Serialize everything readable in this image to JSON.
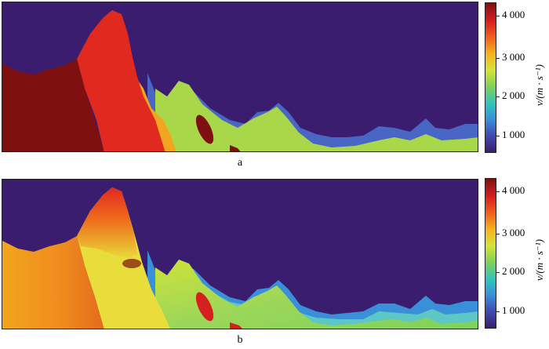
{
  "chart_data": [
    {
      "type": "heatmap",
      "panel_label": "a",
      "colorbar": {
        "label": "v/(m · s⁻¹)",
        "ticks": [
          "1 000",
          "2 000",
          "3 000",
          "4 000"
        ],
        "tick_values": [
          1000,
          2000,
          3000,
          4000
        ],
        "range": [
          600,
          4400
        ],
        "colors": [
          "#3a1d6e",
          "#3f4fb3",
          "#3a8fd9",
          "#2fc1c0",
          "#7fd15a",
          "#d6e23a",
          "#f6b21f",
          "#ef5a1c",
          "#d61f1f",
          "#7e1010"
        ]
      }
    },
    {
      "type": "heatmap",
      "panel_label": "b",
      "colorbar": {
        "label": "v/(m · s⁻¹)",
        "ticks": [
          "1 000",
          "2 000",
          "3 000",
          "4 000"
        ],
        "tick_values": [
          1000,
          2000,
          3000,
          4000
        ],
        "range": [
          600,
          4400
        ],
        "colors": [
          "#3a1d6e",
          "#3f4fb3",
          "#3a8fd9",
          "#2fc1c0",
          "#7fd15a",
          "#d6e23a",
          "#f6b21f",
          "#ef5a1c",
          "#d61f1f",
          "#7e1010"
        ]
      }
    }
  ]
}
